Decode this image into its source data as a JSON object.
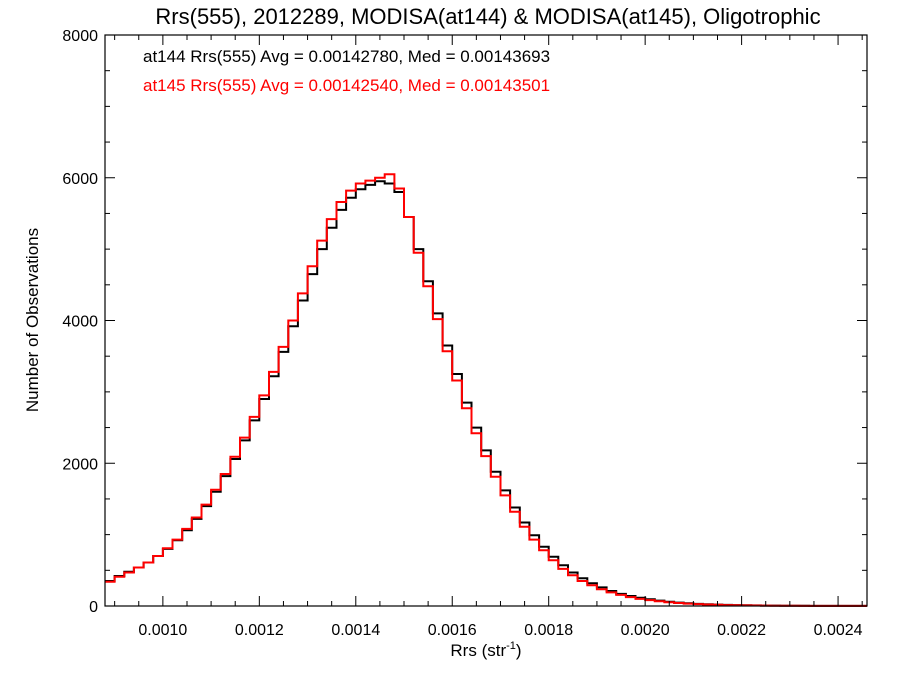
{
  "chart_data": {
    "type": "line",
    "title": "Rrs(555), 2012289, MODISA(at144) & MODISA(at145), Oligotrophic",
    "xlabel": "Rrs (str",
    "xlabel_sup": "-1",
    "xlabel_end": ")",
    "ylabel": "Number of Observations",
    "xlim": [
      0.00088,
      0.00246
    ],
    "ylim": [
      0,
      8000
    ],
    "grid": false,
    "xticks": [
      0.001,
      0.0012,
      0.0014,
      0.0016,
      0.0018,
      0.002,
      0.0022,
      0.0024
    ],
    "xtick_labels": [
      "0.0010",
      "0.0012",
      "0.0014",
      "0.0016",
      "0.0018",
      "0.0020",
      "0.0022",
      "0.0024"
    ],
    "yticks": [
      0,
      2000,
      4000,
      6000,
      8000
    ],
    "ytick_labels": [
      "0",
      "2000",
      "4000",
      "6000",
      "8000"
    ],
    "annotations": [
      {
        "text": "at144 Rrs(555) Avg = 0.00142780, Med = 0.00143693",
        "color": "#000000"
      },
      {
        "text": "at145 Rrs(555) Avg = 0.00142540, Med = 0.00143501",
        "color": "#ff0000"
      }
    ],
    "series": [
      {
        "color": "#000000",
        "x": [
          0.00088,
          0.0009,
          0.00092,
          0.00094,
          0.00096,
          0.00098,
          0.001,
          0.00102,
          0.00104,
          0.00106,
          0.00108,
          0.0011,
          0.00112,
          0.00114,
          0.00116,
          0.00118,
          0.0012,
          0.00122,
          0.00124,
          0.00126,
          0.00128,
          0.0013,
          0.00132,
          0.00134,
          0.00136,
          0.00138,
          0.0014,
          0.00142,
          0.00144,
          0.00146,
          0.00148,
          0.0015,
          0.00152,
          0.00154,
          0.00156,
          0.00158,
          0.0016,
          0.00162,
          0.00164,
          0.00166,
          0.00168,
          0.0017,
          0.00172,
          0.00174,
          0.00176,
          0.00178,
          0.0018,
          0.00182,
          0.00184,
          0.00186,
          0.00188,
          0.0019,
          0.00192,
          0.00194,
          0.00196,
          0.00198,
          0.002,
          0.00202,
          0.00204,
          0.00206,
          0.00208,
          0.0021,
          0.00212,
          0.00214,
          0.00216,
          0.00218,
          0.0022,
          0.00222,
          0.00224,
          0.00226,
          0.00228,
          0.0023,
          0.00232,
          0.00234,
          0.00236,
          0.00238,
          0.0024,
          0.00242,
          0.00244,
          0.00246
        ],
        "values": [
          350,
          420,
          480,
          540,
          610,
          700,
          800,
          920,
          1060,
          1220,
          1400,
          1600,
          1820,
          2060,
          2320,
          2600,
          2900,
          3220,
          3560,
          3920,
          4280,
          4650,
          5000,
          5300,
          5550,
          5720,
          5840,
          5900,
          5950,
          5920,
          5800,
          5450,
          5000,
          4550,
          4100,
          3650,
          3250,
          2850,
          2500,
          2180,
          1880,
          1620,
          1380,
          1170,
          990,
          830,
          690,
          570,
          470,
          390,
          320,
          260,
          210,
          170,
          140,
          115,
          95,
          75,
          60,
          48,
          38,
          30,
          24,
          19,
          15,
          12,
          10,
          8,
          6,
          5,
          4,
          3,
          3,
          2,
          2,
          2,
          1,
          1,
          1,
          1
        ]
      },
      {
        "color": "#ff0000",
        "x": [
          0.00088,
          0.0009,
          0.00092,
          0.00094,
          0.00096,
          0.00098,
          0.001,
          0.00102,
          0.00104,
          0.00106,
          0.00108,
          0.0011,
          0.00112,
          0.00114,
          0.00116,
          0.00118,
          0.0012,
          0.00122,
          0.00124,
          0.00126,
          0.00128,
          0.0013,
          0.00132,
          0.00134,
          0.00136,
          0.00138,
          0.0014,
          0.00142,
          0.00144,
          0.00146,
          0.00148,
          0.0015,
          0.00152,
          0.00154,
          0.00156,
          0.00158,
          0.0016,
          0.00162,
          0.00164,
          0.00166,
          0.00168,
          0.0017,
          0.00172,
          0.00174,
          0.00176,
          0.00178,
          0.0018,
          0.00182,
          0.00184,
          0.00186,
          0.00188,
          0.0019,
          0.00192,
          0.00194,
          0.00196,
          0.00198,
          0.002,
          0.00202,
          0.00204,
          0.00206,
          0.00208,
          0.0021,
          0.00212,
          0.00214,
          0.00216,
          0.00218,
          0.0022,
          0.00222,
          0.00224,
          0.00226,
          0.00228,
          0.0023,
          0.00232,
          0.00234,
          0.00236,
          0.00238,
          0.0024,
          0.00242,
          0.00244,
          0.00246
        ],
        "values": [
          340,
          410,
          470,
          540,
          610,
          700,
          810,
          930,
          1080,
          1240,
          1420,
          1630,
          1850,
          2090,
          2360,
          2650,
          2950,
          3280,
          3630,
          4000,
          4380,
          4760,
          5120,
          5420,
          5660,
          5820,
          5920,
          5960,
          6000,
          6050,
          5850,
          5450,
          4950,
          4480,
          4020,
          3570,
          3160,
          2770,
          2420,
          2100,
          1810,
          1550,
          1320,
          1110,
          930,
          780,
          640,
          520,
          430,
          350,
          290,
          235,
          190,
          155,
          125,
          100,
          82,
          66,
          52,
          42,
          33,
          26,
          21,
          17,
          13,
          10,
          8,
          7,
          5,
          4,
          3,
          3,
          2,
          2,
          2,
          1,
          1,
          1,
          1,
          1
        ]
      }
    ]
  }
}
